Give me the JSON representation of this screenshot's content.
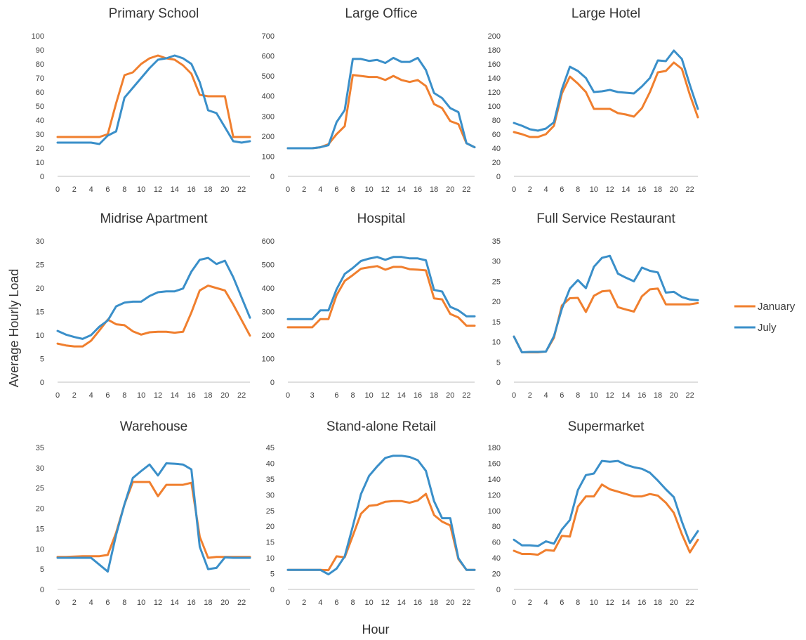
{
  "figure": {
    "ylabel": "Average Hourly Load",
    "xlabel": "Hour"
  },
  "legend": {
    "position": "right",
    "items": [
      {
        "name": "January",
        "color": "#F07F2E"
      },
      {
        "name": "July",
        "color": "#3A8FC9"
      }
    ]
  },
  "chart_data": [
    {
      "type": "line",
      "title": "Primary School",
      "xlabel": "",
      "ylabel": "",
      "ylim": [
        0,
        100
      ],
      "yticks": [
        0,
        10,
        20,
        30,
        40,
        50,
        60,
        70,
        80,
        90,
        100
      ],
      "xticks": [
        0,
        2,
        4,
        6,
        8,
        10,
        12,
        14,
        16,
        18,
        20,
        22
      ],
      "series": [
        {
          "name": "January",
          "color": "#F07F2E",
          "values": [
            28,
            28,
            28,
            28,
            28,
            28,
            30,
            52,
            72,
            74,
            80,
            84,
            86,
            84,
            83,
            79,
            73,
            58,
            57,
            57,
            57,
            28,
            28,
            28
          ]
        },
        {
          "name": "July",
          "color": "#3A8FC9",
          "values": [
            24,
            24,
            24,
            24,
            24,
            23,
            29,
            32,
            56,
            63,
            70,
            77,
            83,
            84,
            86,
            84,
            80,
            67,
            47,
            45,
            35,
            25,
            24,
            25
          ]
        }
      ]
    },
    {
      "type": "line",
      "title": "Large Office",
      "xlabel": "",
      "ylabel": "",
      "ylim": [
        0,
        700
      ],
      "yticks": [
        0,
        100,
        200,
        300,
        400,
        500,
        600,
        700
      ],
      "xticks": [
        0,
        2,
        4,
        6,
        8,
        10,
        12,
        14,
        16,
        18,
        20,
        22
      ],
      "series": [
        {
          "name": "January",
          "color": "#F07F2E",
          "values": [
            140,
            140,
            140,
            140,
            145,
            160,
            210,
            250,
            505,
            500,
            495,
            495,
            480,
            500,
            480,
            470,
            480,
            450,
            360,
            340,
            275,
            260,
            165,
            145
          ]
        },
        {
          "name": "July",
          "color": "#3A8FC9",
          "values": [
            140,
            140,
            140,
            140,
            145,
            155,
            270,
            330,
            585,
            585,
            575,
            580,
            565,
            590,
            570,
            570,
            590,
            530,
            415,
            390,
            340,
            320,
            165,
            145
          ]
        }
      ]
    },
    {
      "type": "line",
      "title": "Large Hotel",
      "xlabel": "",
      "ylabel": "",
      "ylim": [
        0,
        200
      ],
      "yticks": [
        0,
        20,
        40,
        60,
        80,
        100,
        120,
        140,
        160,
        180,
        200
      ],
      "xticks": [
        0,
        2,
        4,
        6,
        8,
        10,
        12,
        14,
        16,
        18,
        20,
        22
      ],
      "series": [
        {
          "name": "January",
          "color": "#F07F2E",
          "values": [
            63,
            60,
            56,
            56,
            60,
            72,
            118,
            142,
            132,
            120,
            96,
            96,
            96,
            90,
            88,
            85,
            97,
            120,
            148,
            150,
            162,
            153,
            116,
            84
          ]
        },
        {
          "name": "July",
          "color": "#3A8FC9",
          "values": [
            76,
            72,
            67,
            65,
            68,
            77,
            124,
            156,
            150,
            140,
            120,
            121,
            123,
            120,
            119,
            118,
            128,
            140,
            165,
            164,
            179,
            167,
            130,
            96
          ]
        }
      ]
    },
    {
      "type": "line",
      "title": "Midrise Apartment",
      "xlabel": "",
      "ylabel": "",
      "ylim": [
        0,
        30
      ],
      "yticks": [
        0,
        5,
        10,
        15,
        20,
        25,
        30
      ],
      "xticks": [
        0,
        2,
        4,
        6,
        8,
        10,
        12,
        14,
        16,
        18,
        20,
        22
      ],
      "series": [
        {
          "name": "January",
          "color": "#F07F2E",
          "values": [
            8.2,
            7.8,
            7.6,
            7.6,
            8.8,
            11,
            13.3,
            12.3,
            12.1,
            10.8,
            10.1,
            10.6,
            10.7,
            10.7,
            10.5,
            10.7,
            14.8,
            19.5,
            20.5,
            20,
            19.5,
            16.5,
            13.2,
            9.9
          ]
        },
        {
          "name": "July",
          "color": "#3A8FC9",
          "values": [
            10.9,
            10.1,
            9.6,
            9.2,
            10,
            11.8,
            13.1,
            16.1,
            16.9,
            17.1,
            17.1,
            18.3,
            19.1,
            19.3,
            19.3,
            19.9,
            23.5,
            26,
            26.4,
            25.1,
            25.8,
            22.3,
            18,
            13.7
          ]
        }
      ]
    },
    {
      "type": "line",
      "title": "Hospital",
      "xlabel": "",
      "ylabel": "",
      "ylim": [
        0,
        600
      ],
      "yticks": [
        0,
        100,
        200,
        300,
        400,
        500,
        600
      ],
      "xticks": [
        0,
        3,
        6,
        8,
        10,
        12,
        14,
        16,
        18,
        20,
        22
      ],
      "series": [
        {
          "name": "January",
          "color": "#F07F2E",
          "values": [
            233,
            233,
            233,
            233,
            268,
            268,
            370,
            430,
            455,
            482,
            488,
            493,
            478,
            490,
            490,
            480,
            478,
            475,
            356,
            352,
            290,
            275,
            240,
            240
          ]
        },
        {
          "name": "July",
          "color": "#3A8FC9",
          "values": [
            268,
            268,
            268,
            268,
            305,
            305,
            395,
            460,
            485,
            515,
            525,
            532,
            520,
            532,
            532,
            526,
            526,
            518,
            392,
            385,
            320,
            305,
            280,
            280
          ]
        }
      ]
    },
    {
      "type": "line",
      "title": "Full Service Restaurant",
      "xlabel": "",
      "ylabel": "",
      "ylim": [
        0,
        35
      ],
      "yticks": [
        0,
        5,
        10,
        15,
        20,
        25,
        30,
        35
      ],
      "xticks": [
        0,
        2,
        4,
        6,
        8,
        10,
        12,
        14,
        16,
        18,
        20,
        22
      ],
      "series": [
        {
          "name": "January",
          "color": "#F07F2E",
          "values": [
            11.3,
            7.4,
            7.4,
            7.4,
            7.6,
            11,
            19,
            20.8,
            20.9,
            17.4,
            21.4,
            22.5,
            22.7,
            18.6,
            18,
            17.5,
            21.3,
            23,
            23.2,
            19.3,
            19.3,
            19.3,
            19.3,
            19.6
          ]
        },
        {
          "name": "July",
          "color": "#3A8FC9",
          "values": [
            11.3,
            7.4,
            7.5,
            7.5,
            7.6,
            11.4,
            18.2,
            23.2,
            25.3,
            23.3,
            28.6,
            30.8,
            31.3,
            26.9,
            25.9,
            25,
            28.4,
            27.6,
            27.2,
            22.2,
            22.4,
            21.1,
            20.5,
            20.3
          ]
        }
      ]
    },
    {
      "type": "line",
      "title": "Warehouse",
      "xlabel": "",
      "ylabel": "",
      "ylim": [
        0,
        35
      ],
      "yticks": [
        0,
        5,
        10,
        15,
        20,
        25,
        30,
        35
      ],
      "xticks": [
        0,
        2,
        4,
        6,
        8,
        10,
        12,
        14,
        16,
        18,
        20,
        22
      ],
      "series": [
        {
          "name": "January",
          "color": "#F07F2E",
          "values": [
            8,
            8,
            8.1,
            8.2,
            8.2,
            8.2,
            8.5,
            14,
            21,
            26.5,
            26.5,
            26.5,
            23,
            25.8,
            25.8,
            25.8,
            26.3,
            13,
            7.8,
            8,
            8,
            8,
            8,
            8
          ]
        },
        {
          "name": "July",
          "color": "#3A8FC9",
          "values": [
            7.8,
            7.8,
            7.8,
            7.8,
            7.8,
            6.1,
            4.4,
            13.5,
            21,
            27.5,
            29.2,
            30.8,
            28.1,
            31.1,
            31,
            30.8,
            29.6,
            10.5,
            5,
            5.3,
            7.9,
            7.8,
            7.8,
            7.8
          ]
        }
      ]
    },
    {
      "type": "line",
      "title": "Stand-alone Retail",
      "xlabel": "",
      "ylabel": "",
      "ylim": [
        0,
        45
      ],
      "yticks": [
        0,
        5,
        10,
        15,
        20,
        25,
        30,
        35,
        40,
        45
      ],
      "xticks": [
        0,
        2,
        4,
        6,
        8,
        10,
        12,
        14,
        16,
        18,
        20,
        22
      ],
      "series": [
        {
          "name": "January",
          "color": "#F07F2E",
          "values": [
            6.2,
            6.2,
            6.2,
            6.2,
            6.2,
            6.1,
            10.5,
            10.2,
            17,
            24,
            26.5,
            26.8,
            27.8,
            28,
            28,
            27.5,
            28.2,
            30.3,
            23.6,
            21.5,
            20.3,
            9.6,
            6.2,
            6.2
          ]
        },
        {
          "name": "July",
          "color": "#3A8FC9",
          "values": [
            6.2,
            6.2,
            6.2,
            6.2,
            6.2,
            4.8,
            6.6,
            10.5,
            20,
            30.2,
            36,
            39,
            41.7,
            42.4,
            42.4,
            42,
            41,
            37.6,
            28,
            22.6,
            22.6,
            9.9,
            6.2,
            6.2
          ]
        }
      ]
    },
    {
      "type": "line",
      "title": "Supermarket",
      "xlabel": "",
      "ylabel": "",
      "ylim": [
        0,
        180
      ],
      "yticks": [
        0,
        20,
        40,
        60,
        80,
        100,
        120,
        140,
        160,
        180
      ],
      "xticks": [
        0,
        2,
        4,
        6,
        8,
        10,
        12,
        14,
        16,
        18,
        20,
        22
      ],
      "series": [
        {
          "name": "January",
          "color": "#F07F2E",
          "values": [
            49,
            45,
            45,
            44,
            50,
            49,
            68,
            67,
            105,
            118,
            118,
            133,
            127,
            124,
            121,
            118,
            118,
            121,
            119,
            110,
            97,
            70,
            47,
            63
          ]
        },
        {
          "name": "July",
          "color": "#3A8FC9",
          "values": [
            63,
            56,
            56,
            55,
            61,
            58,
            76,
            88,
            126,
            145,
            147,
            163,
            162,
            163,
            158,
            155,
            153,
            148,
            138,
            127,
            117,
            86,
            59,
            74
          ]
        }
      ]
    }
  ]
}
